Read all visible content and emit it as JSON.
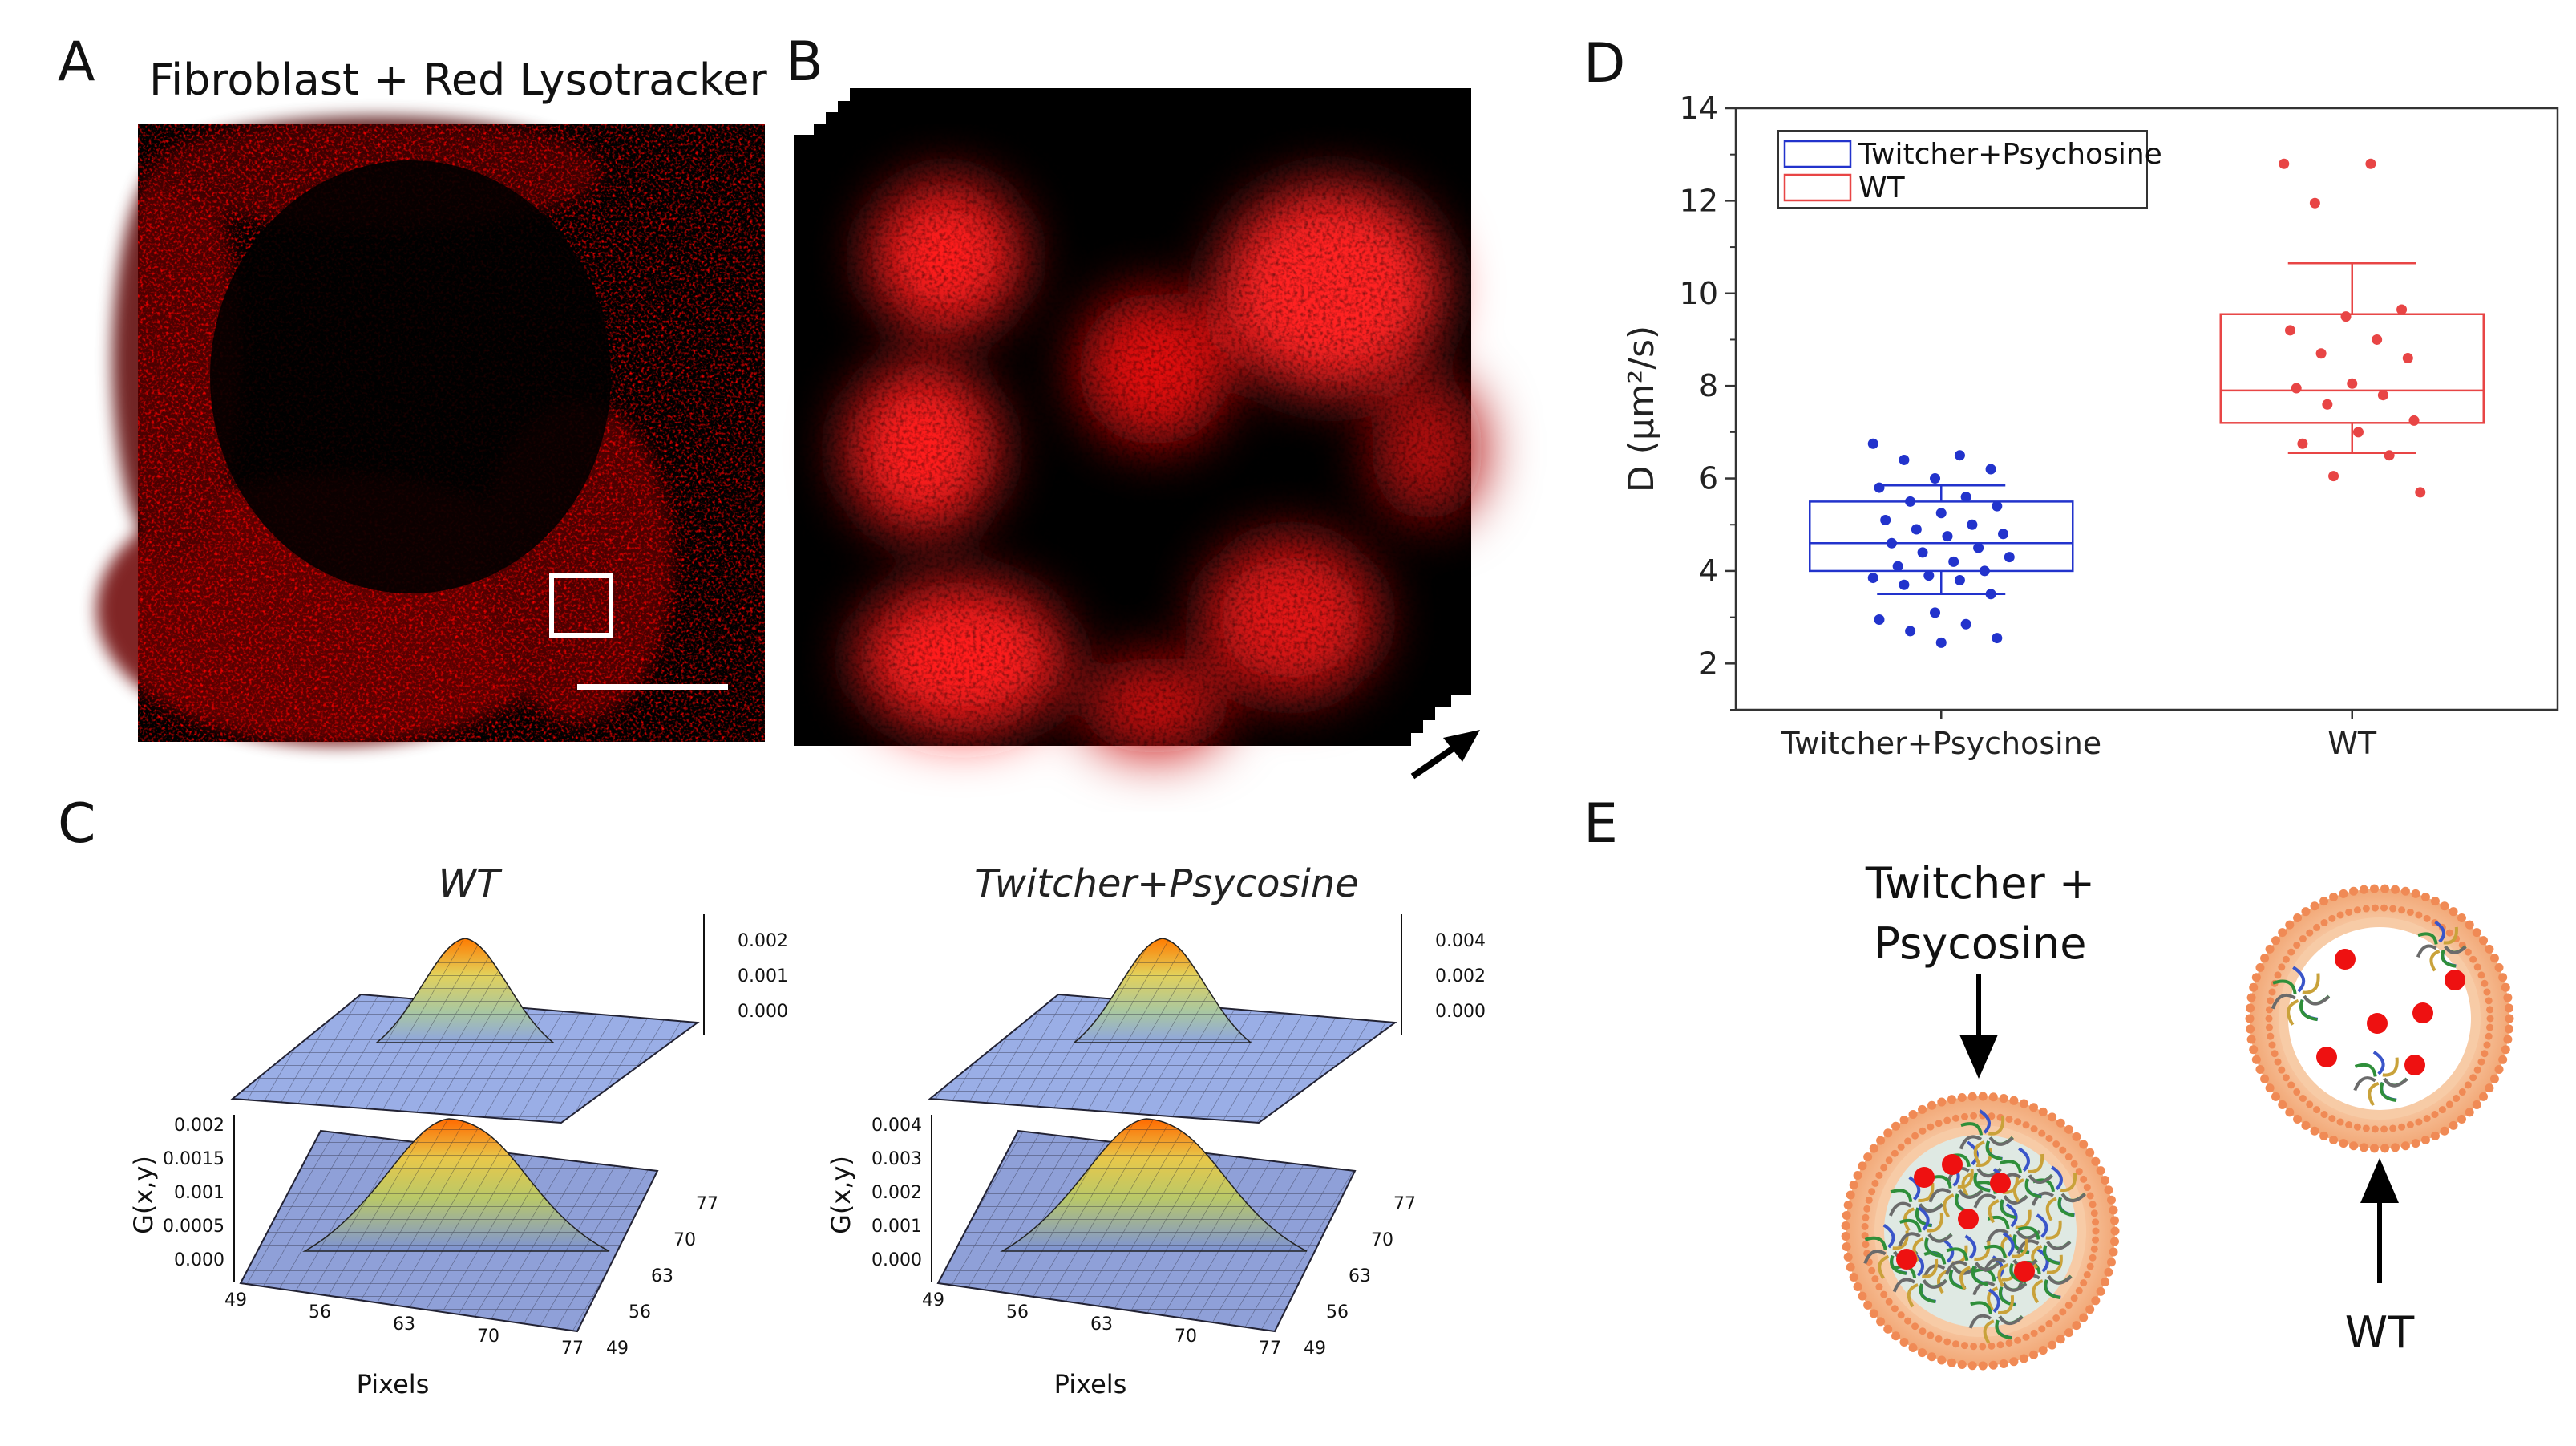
{
  "panels": {
    "a": {
      "letter": "A",
      "title": "Fibroblast + Red Lysotracker"
    },
    "b": {
      "letter": "B"
    },
    "c": {
      "letter": "C",
      "plots": [
        {
          "title": "WT",
          "zticks": [
            "0.000",
            "0.0005",
            "0.001",
            "0.0015",
            "0.002"
          ],
          "top_ticks": [
            "0.002",
            "0.001",
            "0.000"
          ],
          "pixel_ticks": [
            "49",
            "56",
            "63",
            "70",
            "77"
          ],
          "side_ticks": [
            "49",
            "56",
            "63",
            "70",
            "77"
          ],
          "zlabel": "G(x,y)",
          "xlabel": "Pixels"
        },
        {
          "title": "Twitcher+Psycosine",
          "zticks": [
            "0.000",
            "0.001",
            "0.002",
            "0.003",
            "0.004"
          ],
          "top_ticks": [
            "0.004",
            "0.002",
            "0.000"
          ],
          "pixel_ticks": [
            "49",
            "56",
            "63",
            "70",
            "77"
          ],
          "side_ticks": [
            "49",
            "56",
            "63",
            "70",
            "77"
          ],
          "zlabel": "G(x,y)",
          "xlabel": "Pixels"
        }
      ]
    },
    "d": {
      "letter": "D"
    },
    "e": {
      "letter": "E",
      "left_label_1": "Twitcher +",
      "left_label_2": "Psycosine",
      "right_label": "WT"
    }
  },
  "chart_data": {
    "type": "box",
    "title": "",
    "xlabel": "",
    "ylabel": "D (μm²/s)",
    "categories": [
      "Twitcher+Psychosine",
      "WT"
    ],
    "ylim": [
      1,
      14
    ],
    "yticks": [
      2,
      4,
      6,
      8,
      10,
      12,
      14
    ],
    "legend_placement": "top-left",
    "series": [
      {
        "name": "Twitcher+Psychosine",
        "color": "#2233cc",
        "box": {
          "q1": 4.0,
          "median": 4.6,
          "q3": 5.5,
          "whisker_low": 3.5,
          "whisker_high": 5.85
        },
        "points": [
          6.75,
          6.5,
          6.4,
          6.2,
          6.0,
          5.8,
          5.6,
          5.5,
          5.4,
          5.25,
          5.1,
          5.0,
          4.9,
          4.8,
          4.75,
          4.6,
          4.5,
          4.4,
          4.3,
          4.2,
          4.1,
          4.0,
          3.9,
          3.85,
          3.8,
          3.7,
          3.5,
          3.1,
          2.95,
          2.85,
          2.7,
          2.55,
          2.45
        ]
      },
      {
        "name": "WT",
        "color": "#e84545",
        "box": {
          "q1": 7.2,
          "median": 7.9,
          "q3": 9.55,
          "whisker_low": 6.55,
          "whisker_high": 10.65
        },
        "points": [
          12.8,
          12.8,
          11.95,
          9.65,
          9.5,
          9.2,
          9.0,
          8.7,
          8.6,
          8.05,
          7.95,
          7.8,
          7.6,
          7.25,
          7.0,
          6.75,
          6.5,
          6.05,
          5.7
        ]
      }
    ]
  }
}
